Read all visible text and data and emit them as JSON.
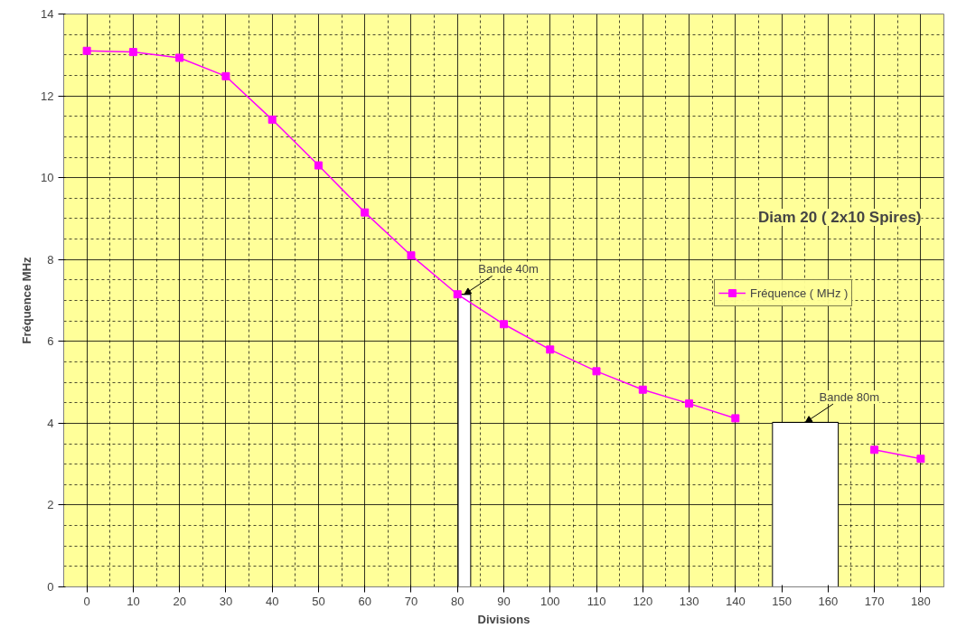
{
  "chart_data": {
    "type": "line",
    "xlabel": "Divisions",
    "ylabel": "Fréquence MHz",
    "x": [
      0,
      10,
      20,
      30,
      40,
      50,
      60,
      70,
      80,
      90,
      100,
      110,
      120,
      130,
      140,
      150,
      160,
      170,
      180
    ],
    "series": [
      {
        "name": "Fréquence ( MHz )",
        "color": "#ff00ff",
        "values": [
          13.1,
          13.07,
          12.93,
          12.48,
          11.42,
          10.3,
          9.15,
          8.1,
          7.15,
          6.42,
          5.8,
          5.27,
          4.82,
          4.48,
          4.12,
          null,
          null,
          3.35,
          3.13
        ]
      },
      {
        "type": "bar",
        "color": "#ffffff",
        "x": [
          81.5,
          155.1
        ],
        "xerrors": [
          1.35,
          7.1
        ],
        "values": [
          7.15,
          4.02
        ]
      }
    ],
    "annotations": [
      {
        "text": "Bande 40m",
        "x": 81.5,
        "y": 7.15
      },
      {
        "text": "Bande 80m",
        "x": 155.1,
        "y": 4.02
      },
      "Diam 20 ( 2x10 Spires)"
    ],
    "xlim": [
      -5,
      185
    ],
    "xticks": [
      0,
      10,
      20,
      30,
      40,
      50,
      60,
      70,
      80,
      90,
      100,
      110,
      120,
      130,
      140,
      150,
      160,
      170,
      180
    ],
    "ylim": [
      0,
      14
    ],
    "yticks": [
      0,
      2,
      4,
      6,
      8,
      10,
      12,
      14
    ],
    "grid": true,
    "legend": "right",
    "marker": "square",
    "line_style": "solid"
  }
}
